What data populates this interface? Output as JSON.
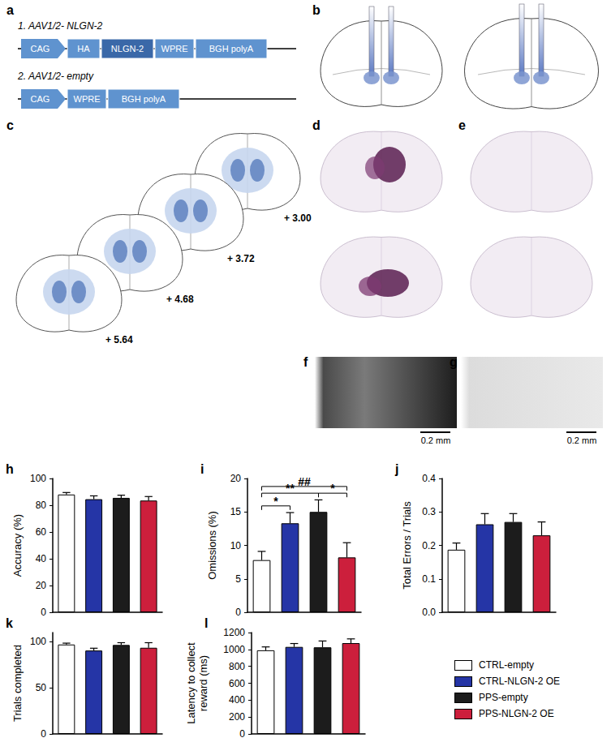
{
  "panels": {
    "a": {
      "label": "a",
      "constructs": [
        {
          "title": "1. AAV1/2- NLGN-2",
          "elements": [
            "CAG",
            "HA",
            "NLGN-2",
            "WPRE",
            "BGH polyA"
          ]
        },
        {
          "title": "2. AAV1/2- empty",
          "elements": [
            "CAG",
            "WPRE",
            "BGH polyA"
          ]
        }
      ]
    },
    "b": {
      "label": "b"
    },
    "c": {
      "label": "c",
      "coordinates": [
        "+ 3.00",
        "+ 3.72",
        "+ 4.68",
        "+ 5.64"
      ]
    },
    "d": {
      "label": "d"
    },
    "e": {
      "label": "e"
    },
    "f": {
      "label": "f",
      "scale_bar": "0.2 mm"
    },
    "g": {
      "label": "g",
      "scale_bar": "0.2 mm"
    }
  },
  "chart_data": [
    {
      "type": "bar",
      "panel": "h",
      "y_label": "Accuracy (%)",
      "categories": [
        "CTRL-empty",
        "CTRL-NLGN-2 OE",
        "PPS-empty",
        "PPS-NLGN-2 OE"
      ],
      "values": [
        88,
        84.5,
        85.5,
        83.5
      ],
      "errors": [
        1.5,
        2.5,
        2,
        3
      ],
      "colors": [
        "#ffffff",
        "#2535a6",
        "#1c1c1c",
        "#cc1f3c"
      ],
      "ylim": [
        0,
        100
      ],
      "yticks": [
        0,
        20,
        40,
        60,
        80,
        100
      ],
      "grid": false,
      "tick_labels": "y"
    },
    {
      "type": "bar",
      "panel": "i",
      "y_label": "Omissions (%)",
      "categories": [
        "CTRL-empty",
        "CTRL-NLGN-2 OE",
        "PPS-empty",
        "PPS-NLGN-2 OE"
      ],
      "values": [
        7.8,
        13.3,
        15,
        8.2
      ],
      "errors": [
        1.3,
        1.6,
        1.8,
        2.2
      ],
      "colors": [
        "#ffffff",
        "#2535a6",
        "#1c1c1c",
        "#cc1f3c"
      ],
      "ylim": [
        0,
        20
      ],
      "yticks": [
        0,
        5,
        10,
        15,
        20
      ],
      "grid": false,
      "tick_labels": "y",
      "significance": [
        {
          "label": "*",
          "between": [
            0,
            1
          ]
        },
        {
          "label": "*",
          "between": [
            2,
            3
          ]
        },
        {
          "label": "**",
          "between": [
            0,
            2
          ]
        },
        {
          "label": "##",
          "between": [
            0,
            3
          ]
        }
      ]
    },
    {
      "type": "bar",
      "panel": "j",
      "y_label": "Total Errors / Trials",
      "categories": [
        "CTRL-empty",
        "CTRL-NLGN-2 OE",
        "PPS-empty",
        "PPS-NLGN-2 OE"
      ],
      "values": [
        0.187,
        0.263,
        0.27,
        0.23
      ],
      "errors": [
        0.02,
        0.032,
        0.025,
        0.04
      ],
      "colors": [
        "#ffffff",
        "#2535a6",
        "#1c1c1c",
        "#cc1f3c"
      ],
      "ylim": [
        0,
        0.4
      ],
      "yticks": [
        {
          "value": 0,
          "label": "0.0"
        },
        0.1,
        0.2,
        0.3,
        0.4
      ],
      "grid": false,
      "tick_labels": "y"
    },
    {
      "type": "bar",
      "panel": "k",
      "y_label": "Trials completed",
      "categories": [
        "CTRL-empty",
        "CTRL-NLGN-2 OE",
        "PPS-empty",
        "PPS-NLGN-2 OE"
      ],
      "values": [
        97,
        90.5,
        96.5,
        93.5
      ],
      "errors": [
        1.5,
        2.5,
        2.5,
        5.5
      ],
      "colors": [
        "#ffffff",
        "#2535a6",
        "#1c1c1c",
        "#cc1f3c"
      ],
      "ylim": [
        0,
        110
      ],
      "yticks": [
        0,
        50,
        100
      ],
      "grid": false,
      "tick_labels": "y"
    },
    {
      "type": "bar",
      "panel": "l",
      "y_label": "Latency to collect\nreward (ms)",
      "categories": [
        "CTRL-empty",
        "CTRL-NLGN-2 OE",
        "PPS-empty",
        "PPS-NLGN-2 OE"
      ],
      "values": [
        990,
        1030,
        1025,
        1075
      ],
      "errors": [
        40,
        40,
        75,
        50
      ],
      "colors": [
        "#ffffff",
        "#2535a6",
        "#1c1c1c",
        "#cc1f3c"
      ],
      "ylim": [
        0,
        1200
      ],
      "yticks": [
        0,
        200,
        400,
        600,
        800,
        1000,
        1200
      ],
      "grid": false,
      "tick_labels": "y",
      "legend": "right"
    }
  ]
}
